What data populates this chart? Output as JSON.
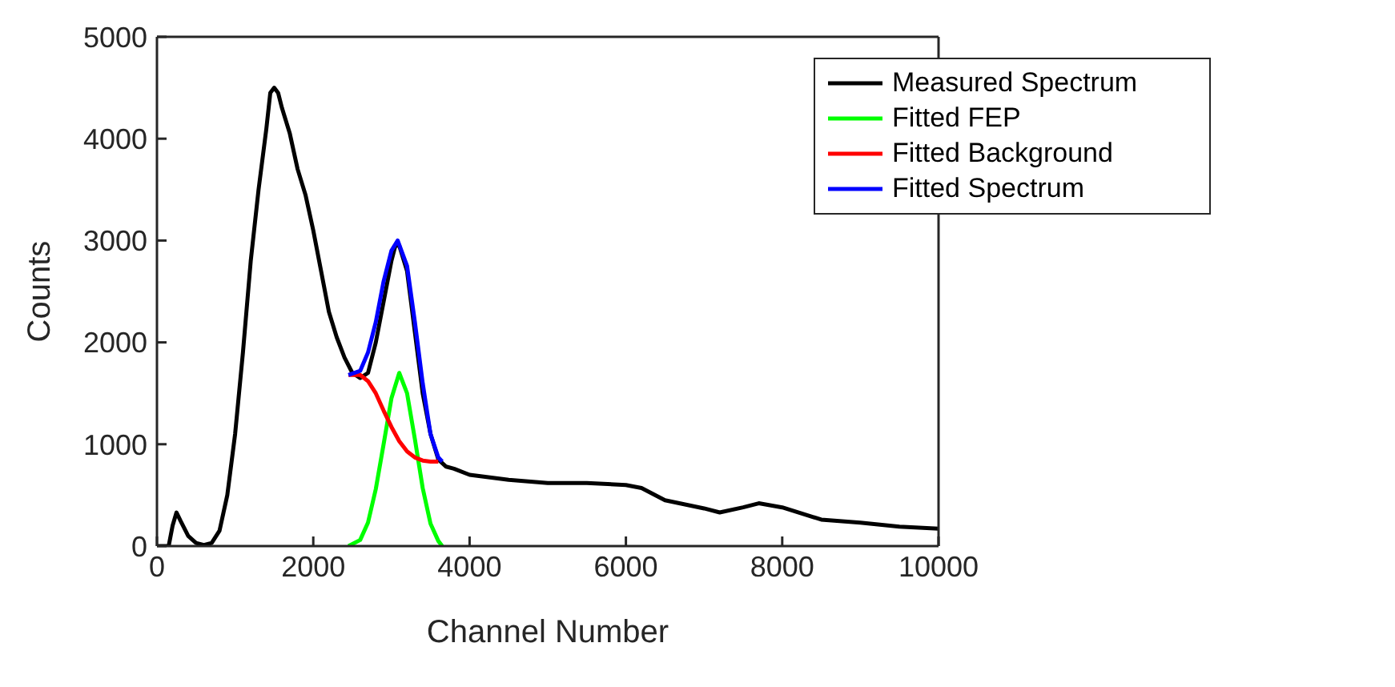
{
  "chart_data": {
    "type": "line",
    "xlabel": "Channel Number",
    "ylabel": "Counts",
    "xlim": [
      0,
      10000
    ],
    "ylim": [
      0,
      5000
    ],
    "xticks": [
      0,
      2000,
      4000,
      6000,
      8000,
      10000
    ],
    "yticks": [
      0,
      1000,
      2000,
      3000,
      4000,
      5000
    ],
    "grid": false,
    "legend": "top right",
    "marker": "none",
    "line_style": "solid",
    "series": [
      {
        "name": "Measured Spectrum",
        "color": "#000000",
        "x": [
          0,
          150,
          200,
          250,
          300,
          400,
          500,
          600,
          700,
          800,
          900,
          1000,
          1100,
          1200,
          1300,
          1400,
          1450,
          1500,
          1550,
          1600,
          1700,
          1800,
          1900,
          2000,
          2100,
          2200,
          2300,
          2400,
          2500,
          2600,
          2700,
          2800,
          2900,
          3000,
          3050,
          3100,
          3200,
          3300,
          3400,
          3500,
          3600,
          3700,
          3800,
          4000,
          4500,
          5000,
          5500,
          6000,
          6200,
          6500,
          7000,
          7200,
          7500,
          7700,
          8000,
          8500,
          9000,
          9500,
          10000
        ],
        "values": [
          0,
          0,
          200,
          330,
          250,
          100,
          30,
          10,
          30,
          150,
          500,
          1100,
          1900,
          2800,
          3500,
          4100,
          4450,
          4500,
          4450,
          4300,
          4050,
          3700,
          3450,
          3100,
          2700,
          2300,
          2050,
          1850,
          1700,
          1650,
          1700,
          2000,
          2400,
          2800,
          2950,
          2950,
          2700,
          2100,
          1500,
          1100,
          850,
          780,
          760,
          700,
          650,
          620,
          620,
          600,
          570,
          450,
          370,
          330,
          380,
          420,
          380,
          260,
          230,
          190,
          170
        ]
      },
      {
        "name": "Fitted FEP",
        "color": "#00ff00",
        "x": [
          2450,
          2600,
          2700,
          2800,
          2900,
          3000,
          3100,
          3200,
          3300,
          3400,
          3500,
          3600,
          3650
        ],
        "values": [
          0,
          60,
          230,
          560,
          1000,
          1450,
          1700,
          1500,
          1050,
          570,
          220,
          50,
          0
        ]
      },
      {
        "name": "Fitted Background",
        "color": "#ff0000",
        "x": [
          2450,
          2600,
          2700,
          2800,
          2900,
          3000,
          3100,
          3200,
          3300,
          3400,
          3500,
          3600
        ],
        "values": [
          1680,
          1680,
          1620,
          1500,
          1330,
          1170,
          1030,
          930,
          870,
          840,
          830,
          830
        ]
      },
      {
        "name": "Fitted Spectrum",
        "color": "#0000ff",
        "x": [
          2450,
          2600,
          2700,
          2800,
          2900,
          3000,
          3080,
          3200,
          3300,
          3400,
          3500,
          3600,
          3650
        ],
        "values": [
          1680,
          1720,
          1900,
          2200,
          2600,
          2900,
          3000,
          2750,
          2200,
          1600,
          1100,
          870,
          830
        ]
      }
    ]
  }
}
